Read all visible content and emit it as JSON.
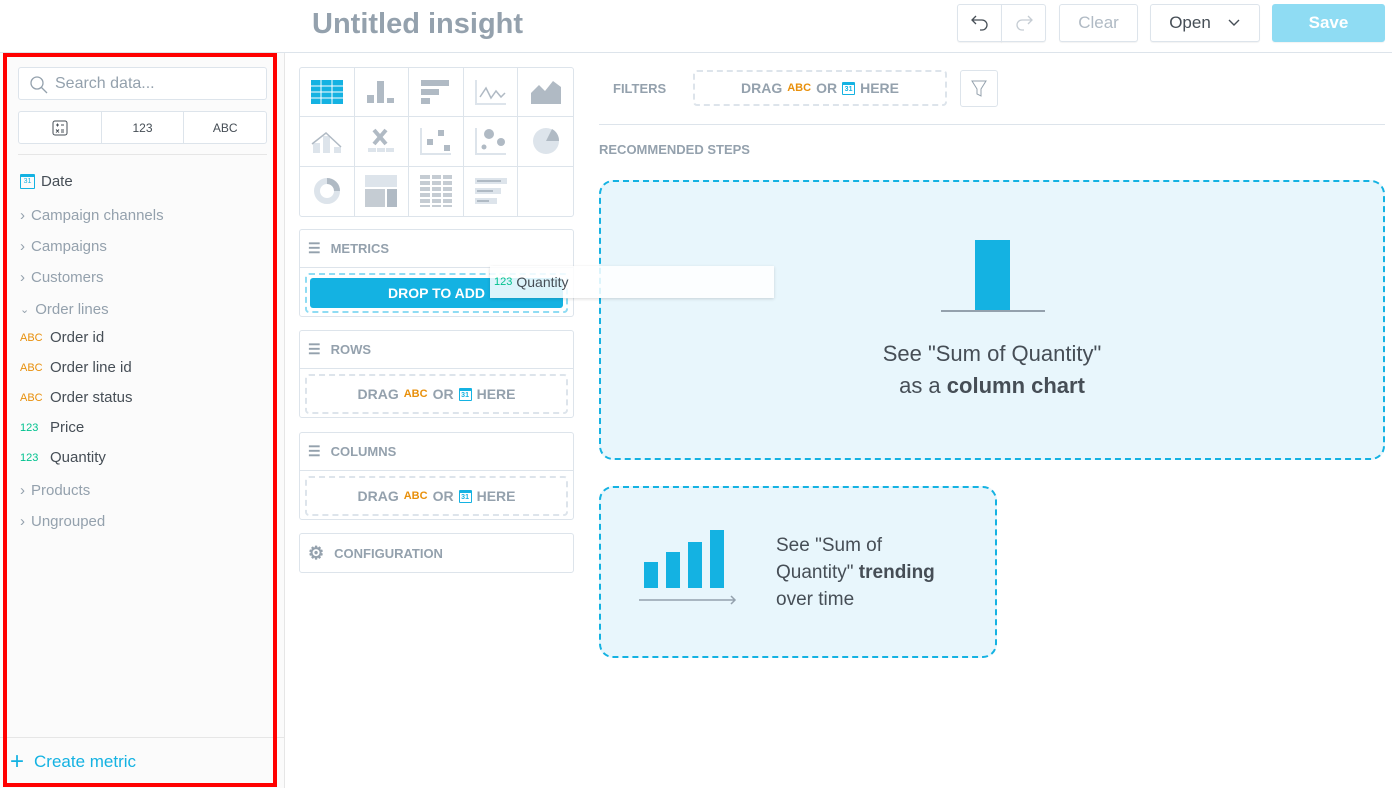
{
  "header": {
    "title": "Untitled insight",
    "undo": "undo-icon",
    "redo": "redo-icon",
    "clear": "Clear",
    "open": "Open",
    "save": "Save"
  },
  "sidebar": {
    "search_placeholder": "Search data...",
    "type_filters": [
      "calculator-icon",
      "123",
      "ABC"
    ],
    "items": [
      {
        "label": "Date",
        "type": "date"
      },
      {
        "label": "Campaign channels",
        "type": "folder"
      },
      {
        "label": "Campaigns",
        "type": "folder"
      },
      {
        "label": "Customers",
        "type": "folder"
      },
      {
        "label": "Order lines",
        "type": "folder-open"
      },
      {
        "label": "Order id",
        "type": "ABC"
      },
      {
        "label": "Order line id",
        "type": "ABC"
      },
      {
        "label": "Order status",
        "type": "ABC"
      },
      {
        "label": "Price",
        "type": "123"
      },
      {
        "label": "Quantity",
        "type": "123"
      },
      {
        "label": "Products",
        "type": "folder"
      },
      {
        "label": "Ungrouped",
        "type": "folder"
      }
    ],
    "create_metric": "Create metric"
  },
  "buckets": {
    "metrics": "METRICS",
    "drop_to_add": "DROP TO ADD",
    "rows": "ROWS",
    "columns": "COLUMNS",
    "configuration": "CONFIGURATION",
    "drag": "DRAG",
    "abc": "ABC",
    "or": "OR",
    "here": "HERE",
    "cal": "31"
  },
  "drag_item": {
    "tag": "123",
    "label": "Quantity"
  },
  "filters": {
    "label": "FILTERS"
  },
  "recommended": {
    "label": "RECOMMENDED STEPS",
    "card1": {
      "line1": "See \"Sum of Quantity\"",
      "line2a": "as a ",
      "line2b": "column chart"
    },
    "card2": {
      "l1": "See \"Sum of",
      "l2a": "Quantity\" ",
      "l2b": "trending",
      "l3": "over time"
    }
  },
  "colors": {
    "accent": "#14b2e2",
    "abc": "#e8900c",
    "number": "#00c18e",
    "save_disabled": "#8fdcf3"
  }
}
